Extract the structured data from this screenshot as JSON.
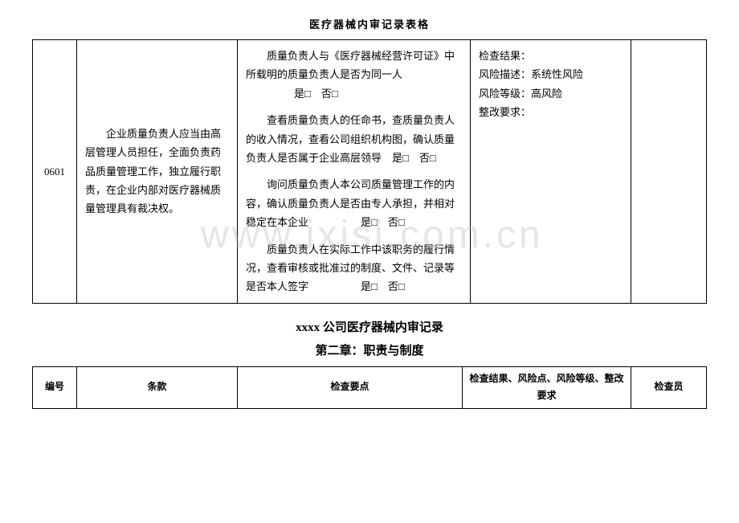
{
  "header": "医疗器械内审记录表格",
  "watermark": "www.ixisi.com.cn",
  "table1": {
    "row": {
      "id": "0601",
      "clause": "企业质量负责人应当由高层管理人员担任，全面负责药品质量管理工作，独立履行职责，在企业内部对医疗器械质量管理具有裁决权。",
      "points": {
        "p1": "质量负责人与《医疗器械经营许可证》中所载明的质量负责人是否为同一人",
        "p1_check": "是□　否□",
        "p2": "查看质量负责人的任命书，查质量负责人的收入情况，查看公司组织机构图，确认质量负责人是否属于企业高层领导　是□　否□",
        "p3": "询问质量负责人本公司质量管理工作的内容，确认质量负责人是否由专人承担，并相对稳定在本企业　　　　　是□　否□",
        "p4": "质量负责人在实际工作中该职务的履行情况，查看审核或批准过的制度、文件、记录等是否本人签字　　　　　是□　否□"
      },
      "results": {
        "r1": "检查结果：",
        "r2": "风险描述：系统性风险",
        "r3": "风险等级：高风险",
        "r4": "整改要求："
      }
    }
  },
  "section_title": "xxxx 公司医疗器械内审记录",
  "chapter_title": "第二章：职责与制度",
  "table2": {
    "headers": {
      "h1": "编号",
      "h2": "条款",
      "h3": "检查要点",
      "h4": "检查结果、风险点、风险等级、整改要求",
      "h5": "检查员"
    }
  }
}
